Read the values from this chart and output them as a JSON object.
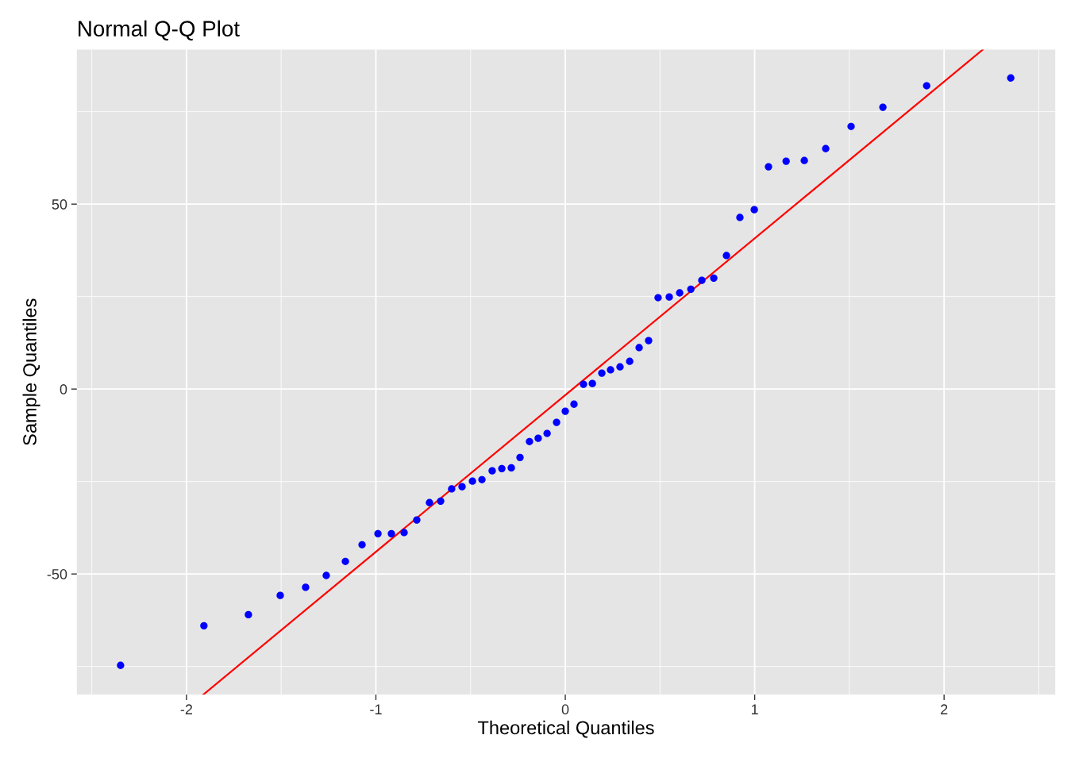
{
  "chart_data": {
    "type": "scatter",
    "title": "Normal Q-Q Plot",
    "xlabel": "Theoretical Quantiles",
    "ylabel": "Sample Quantiles",
    "xlim": [
      -2.579,
      2.587
    ],
    "ylim": [
      -82.6,
      91.8
    ],
    "xticks": [
      -2,
      -1,
      0,
      1,
      2
    ],
    "yticks": [
      -50,
      0,
      50
    ],
    "grid": true,
    "series": [
      {
        "marker": "circle",
        "color": "#0000ff",
        "x": [
          -2.348,
          -1.908,
          -1.673,
          -1.505,
          -1.371,
          -1.262,
          -1.161,
          -1.073,
          -0.989,
          -0.918,
          -0.851,
          -0.784,
          -0.717,
          -0.658,
          -0.6,
          -0.545,
          -0.49,
          -0.44,
          -0.386,
          -0.335,
          -0.285,
          -0.239,
          -0.189,
          -0.143,
          -0.096,
          -0.046,
          0,
          0.046,
          0.096,
          0.143,
          0.193,
          0.239,
          0.289,
          0.34,
          0.39,
          0.44,
          0.49,
          0.549,
          0.604,
          0.663,
          0.721,
          0.784,
          0.851,
          0.922,
          0.998,
          1.073,
          1.166,
          1.262,
          1.375,
          1.509,
          1.677,
          1.908,
          2.352
        ],
        "values": [
          -74.7,
          -64.0,
          -61.0,
          -55.8,
          -53.6,
          -50.4,
          -46.6,
          -42.1,
          -39.1,
          -39.1,
          -38.8,
          -35.4,
          -30.7,
          -30.3,
          -27.0,
          -26.4,
          -24.9,
          -24.5,
          -22.1,
          -21.5,
          -21.3,
          -18.5,
          -14.2,
          -13.3,
          -12.0,
          -9.0,
          -6.0,
          -4.1,
          1.3,
          1.5,
          4.3,
          5.2,
          6.0,
          7.5,
          11.2,
          13.1,
          24.7,
          24.9,
          26.0,
          27.0,
          29.4,
          30.0,
          36.1,
          46.4,
          48.5,
          60.1,
          61.6,
          61.8,
          65.0,
          71.0,
          76.2,
          82.0,
          84.1
        ]
      },
      {
        "type": "line",
        "color": "#ff0000",
        "x": [
          -1.911,
          2.205
        ],
        "values": [
          -82.6,
          91.8
        ]
      }
    ]
  }
}
